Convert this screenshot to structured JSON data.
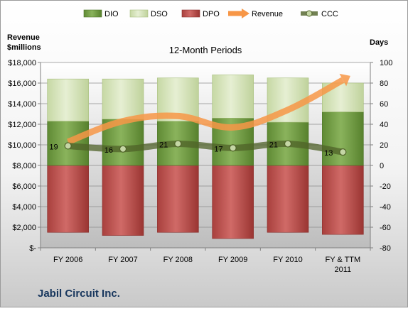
{
  "chart_data": {
    "type": "bar",
    "title": "12-Month Periods",
    "company": "Jabil Circuit Inc.",
    "left_axis_label": "Revenue\n$millions",
    "right_axis_label": "Days",
    "categories": [
      "FY 2006",
      "FY 2007",
      "FY 2008",
      "FY 2009",
      "FY 2010",
      "FY & TTM\n2011"
    ],
    "left_axis": {
      "min": 0,
      "max": 18000,
      "step": 2000,
      "tick_labels": [
        "$-",
        "$2,000",
        "$4,000",
        "$6,000",
        "$8,000",
        "$10,000",
        "$12,000",
        "$14,000",
        "$16,000",
        "$18,000"
      ]
    },
    "right_axis": {
      "min": -80,
      "max": 100,
      "step": 20,
      "tick_labels": [
        "-80",
        "-60",
        "-40",
        "-20",
        "0",
        "20",
        "40",
        "60",
        "80",
        "100"
      ]
    },
    "legend": [
      "DIO",
      "DSO",
      "DPO",
      "Revenue",
      "CCC"
    ],
    "legend_position": "top",
    "grid": true,
    "series": [
      {
        "name": "DPO",
        "axis": "right",
        "color": "#c0504d",
        "bar_range": [
          [
            0,
            -65
          ],
          [
            0,
            -68
          ],
          [
            0,
            -65
          ],
          [
            0,
            -71
          ],
          [
            0,
            -65
          ],
          [
            0,
            -67
          ]
        ]
      },
      {
        "name": "DIO",
        "axis": "right",
        "color": "#77a14a",
        "bar_range": [
          [
            0,
            43
          ],
          [
            0,
            45
          ],
          [
            0,
            43
          ],
          [
            0,
            46
          ],
          [
            0,
            42
          ],
          [
            0,
            52
          ]
        ]
      },
      {
        "name": "DSO",
        "axis": "right",
        "color": "#d7e4bd",
        "bar_range": [
          [
            43,
            84
          ],
          [
            45,
            84
          ],
          [
            43,
            85
          ],
          [
            46,
            88
          ],
          [
            42,
            85
          ],
          [
            52,
            80
          ]
        ]
      },
      {
        "name": "Revenue",
        "axis": "left",
        "color": "#f79646",
        "values": [
          10300,
          12300,
          12800,
          11700,
          13400,
          16300
        ]
      },
      {
        "name": "CCC",
        "axis": "right",
        "color": "#4f6228",
        "values": [
          19,
          16,
          21,
          17,
          21,
          13
        ],
        "labels": [
          "19",
          "16",
          "21",
          "17",
          "21",
          "13"
        ]
      }
    ]
  }
}
